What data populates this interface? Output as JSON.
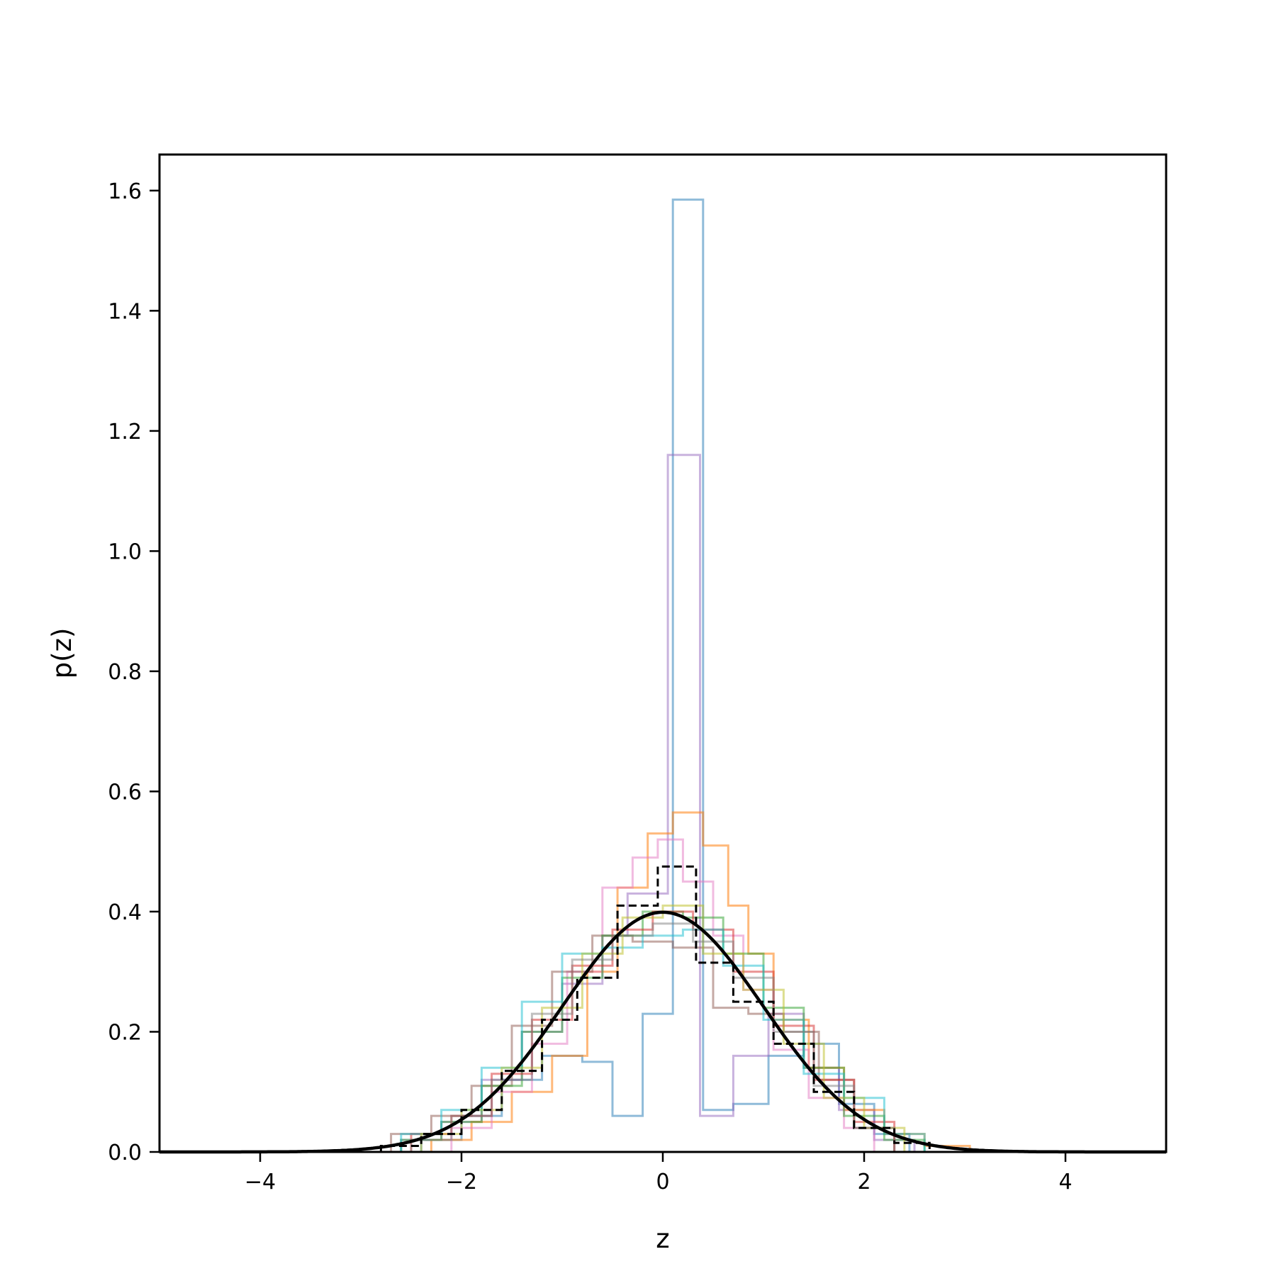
{
  "chart_data": {
    "type": "histogram",
    "xlabel": "z",
    "ylabel": "p(z)",
    "xlim": [
      -5,
      5
    ],
    "ylim": [
      0,
      1.66
    ],
    "xticks": [
      -4,
      -2,
      0,
      2,
      4
    ],
    "xtick_labels": [
      "−4",
      "−2",
      "0",
      "2",
      "4"
    ],
    "yticks": [
      0.0,
      0.2,
      0.4,
      0.6,
      0.8,
      1.0,
      1.2,
      1.4,
      1.6
    ],
    "ytick_labels": [
      "0.0",
      "0.2",
      "0.4",
      "0.6",
      "0.8",
      "1.0",
      "1.2",
      "1.4",
      "1.6"
    ],
    "grid": false,
    "histograms": [
      {
        "color": "#1f77b4",
        "alpha": 0.5,
        "edges": [
          -2.4,
          -2.0,
          -1.6,
          -1.2,
          -0.8,
          -0.5,
          -0.2,
          0.1,
          0.4,
          0.7,
          1.05,
          1.4,
          1.75,
          2.1,
          2.45
        ],
        "densities": [
          0.02,
          0.06,
          0.12,
          0.16,
          0.15,
          0.06,
          0.23,
          1.585,
          0.07,
          0.08,
          0.16,
          0.18,
          0.08,
          0.03
        ]
      },
      {
        "color": "#9467bd",
        "alpha": 0.5,
        "edges": [
          -2.6,
          -2.2,
          -1.8,
          -1.4,
          -1.0,
          -0.6,
          -0.35,
          0.05,
          0.37,
          0.7,
          1.05,
          1.4,
          1.75,
          2.1,
          2.5
        ],
        "densities": [
          0.02,
          0.05,
          0.12,
          0.2,
          0.28,
          0.36,
          0.43,
          1.16,
          0.06,
          0.16,
          0.23,
          0.14,
          0.07,
          0.02
        ]
      },
      {
        "color": "#ff7f0e",
        "alpha": 0.55,
        "edges": [
          -2.3,
          -1.9,
          -1.5,
          -1.1,
          -0.75,
          -0.45,
          -0.15,
          0.1,
          0.4,
          0.65,
          0.85,
          1.1,
          1.45,
          1.8,
          2.2,
          2.6,
          3.05
        ],
        "densities": [
          0.02,
          0.05,
          0.1,
          0.16,
          0.3,
          0.44,
          0.53,
          0.565,
          0.51,
          0.41,
          0.33,
          0.22,
          0.14,
          0.07,
          0.03,
          0.01
        ]
      },
      {
        "color": "#e377c2",
        "alpha": 0.5,
        "edges": [
          -2.1,
          -1.7,
          -1.3,
          -0.95,
          -0.6,
          -0.3,
          -0.05,
          0.2,
          0.5,
          0.8,
          1.1,
          1.45,
          1.8,
          2.1
        ],
        "densities": [
          0.04,
          0.1,
          0.18,
          0.3,
          0.44,
          0.49,
          0.52,
          0.45,
          0.36,
          0.27,
          0.17,
          0.09,
          0.04
        ]
      },
      {
        "color": "#8c564b",
        "alpha": 0.5,
        "edges": [
          -2.7,
          -2.3,
          -1.9,
          -1.5,
          -1.1,
          -0.7,
          -0.3,
          0.1,
          0.5,
          0.85,
          1.2,
          1.55,
          1.9,
          2.3
        ],
        "densities": [
          0.03,
          0.06,
          0.11,
          0.21,
          0.3,
          0.36,
          0.35,
          0.34,
          0.24,
          0.23,
          0.2,
          0.12,
          0.04
        ]
      },
      {
        "color": "#2ca02c",
        "alpha": 0.5,
        "edges": [
          -2.6,
          -2.2,
          -1.8,
          -1.4,
          -1.0,
          -0.6,
          -0.2,
          0.2,
          0.6,
          1.0,
          1.4,
          1.8,
          2.2,
          2.6
        ],
        "densities": [
          0.02,
          0.05,
          0.11,
          0.2,
          0.29,
          0.36,
          0.4,
          0.39,
          0.33,
          0.24,
          0.14,
          0.06,
          0.02
        ]
      },
      {
        "color": "#d62728",
        "alpha": 0.5,
        "edges": [
          -2.5,
          -2.1,
          -1.7,
          -1.3,
          -0.9,
          -0.5,
          -0.1,
          0.3,
          0.7,
          1.1,
          1.5,
          1.9,
          2.3
        ],
        "densities": [
          0.03,
          0.06,
          0.13,
          0.22,
          0.31,
          0.37,
          0.4,
          0.37,
          0.3,
          0.21,
          0.12,
          0.05
        ]
      },
      {
        "color": "#17becf",
        "alpha": 0.5,
        "edges": [
          -2.6,
          -2.2,
          -1.8,
          -1.4,
          -1.0,
          -0.6,
          -0.2,
          0.2,
          0.6,
          1.0,
          1.4,
          1.8,
          2.2,
          2.6
        ],
        "densities": [
          0.03,
          0.07,
          0.14,
          0.25,
          0.33,
          0.34,
          0.36,
          0.37,
          0.31,
          0.22,
          0.13,
          0.09,
          0.03
        ]
      },
      {
        "color": "#bcbd22",
        "alpha": 0.5,
        "edges": [
          -2.4,
          -2.0,
          -1.6,
          -1.2,
          -0.8,
          -0.4,
          0.0,
          0.4,
          0.8,
          1.2,
          1.6,
          2.0,
          2.4
        ],
        "densities": [
          0.03,
          0.07,
          0.14,
          0.24,
          0.33,
          0.39,
          0.41,
          0.33,
          0.27,
          0.18,
          0.09,
          0.04
        ]
      },
      {
        "color": "#7f7f7f",
        "alpha": 0.5,
        "edges": [
          -2.5,
          -2.1,
          -1.7,
          -1.3,
          -0.9,
          -0.5,
          -0.1,
          0.3,
          0.7,
          1.1,
          1.5,
          1.9,
          2.3
        ],
        "densities": [
          0.02,
          0.06,
          0.12,
          0.23,
          0.32,
          0.36,
          0.38,
          0.35,
          0.29,
          0.2,
          0.11,
          0.04
        ]
      }
    ],
    "reference_histogram": {
      "color": "#000000",
      "style": "dashed",
      "edges": [
        -2.8,
        -2.4,
        -2.0,
        -1.6,
        -1.2,
        -0.85,
        -0.45,
        -0.05,
        0.33,
        0.7,
        1.1,
        1.5,
        1.9,
        2.3,
        2.65
      ],
      "densities": [
        0.01,
        0.03,
        0.07,
        0.135,
        0.22,
        0.29,
        0.41,
        0.475,
        0.315,
        0.25,
        0.18,
        0.1,
        0.04,
        0.015
      ]
    },
    "curve": {
      "color": "#000000",
      "function": "standard normal density",
      "mean": 0,
      "std": 1,
      "peak": 0.399
    }
  }
}
